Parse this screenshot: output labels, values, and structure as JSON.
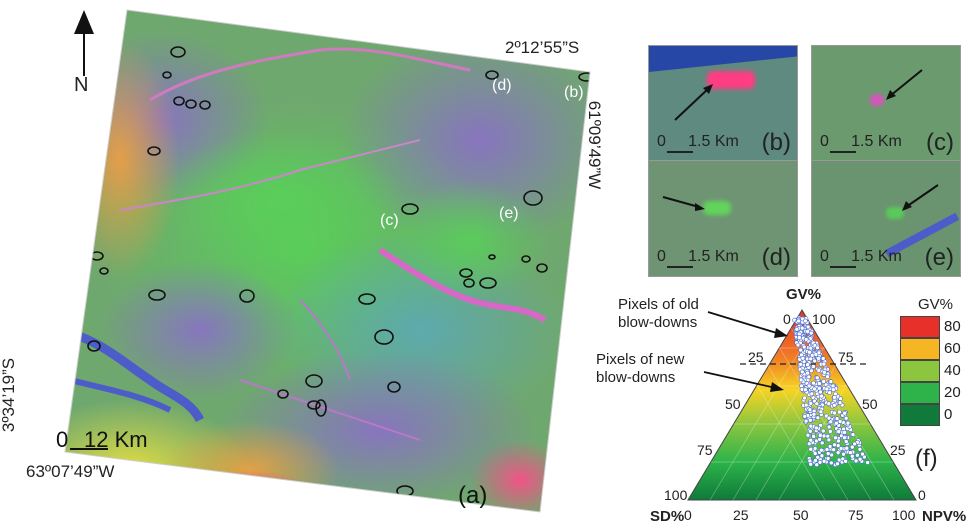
{
  "north_label": "N",
  "coords": {
    "top_right_lat": "2º12’55”S",
    "right_lon": "61º09’49”W",
    "left_lat": "3º34’19”S",
    "bottom_lon": "63º07’49”W"
  },
  "main_map": {
    "scale_label": "12 Km",
    "scale_zero": "0",
    "panel_label": "(a)",
    "marker_b": "(b)",
    "marker_c": "(c)",
    "marker_d": "(d)",
    "marker_e": "(e)"
  },
  "insets": [
    {
      "label": "(b)",
      "scale": "1.5 Km",
      "zero": "0"
    },
    {
      "label": "(c)",
      "scale": "1.5 Km",
      "zero": "0"
    },
    {
      "label": "(d)",
      "scale": "1.5 Km",
      "zero": "0"
    },
    {
      "label": "(e)",
      "scale": "1.5 Km",
      "zero": "0"
    }
  ],
  "ternary": {
    "panel_label": "(f)",
    "top_label": "GV%",
    "left_label": "SD%",
    "right_label": "NPV%",
    "old_label_line1": "Pixels of old",
    "old_label_line2": "blow-downs",
    "new_label_line1": "Pixels of new",
    "new_label_line2": "blow-downs",
    "left_ticks": [
      "0",
      "25",
      "50",
      "75",
      "100"
    ],
    "right_ticks": [
      "100",
      "75",
      "50",
      "25",
      "0"
    ],
    "bottom_ticks": [
      "0",
      "25",
      "50",
      "75",
      "100"
    ]
  },
  "legend": {
    "title": "GV%",
    "items": [
      {
        "label": "80",
        "color": "#e8302a"
      },
      {
        "label": "60",
        "color": "#f6b623"
      },
      {
        "label": "40",
        "color": "#8cc63f"
      },
      {
        "label": "20",
        "color": "#2db34a"
      },
      {
        "label": "0",
        "color": "#0f7a3a"
      }
    ]
  }
}
